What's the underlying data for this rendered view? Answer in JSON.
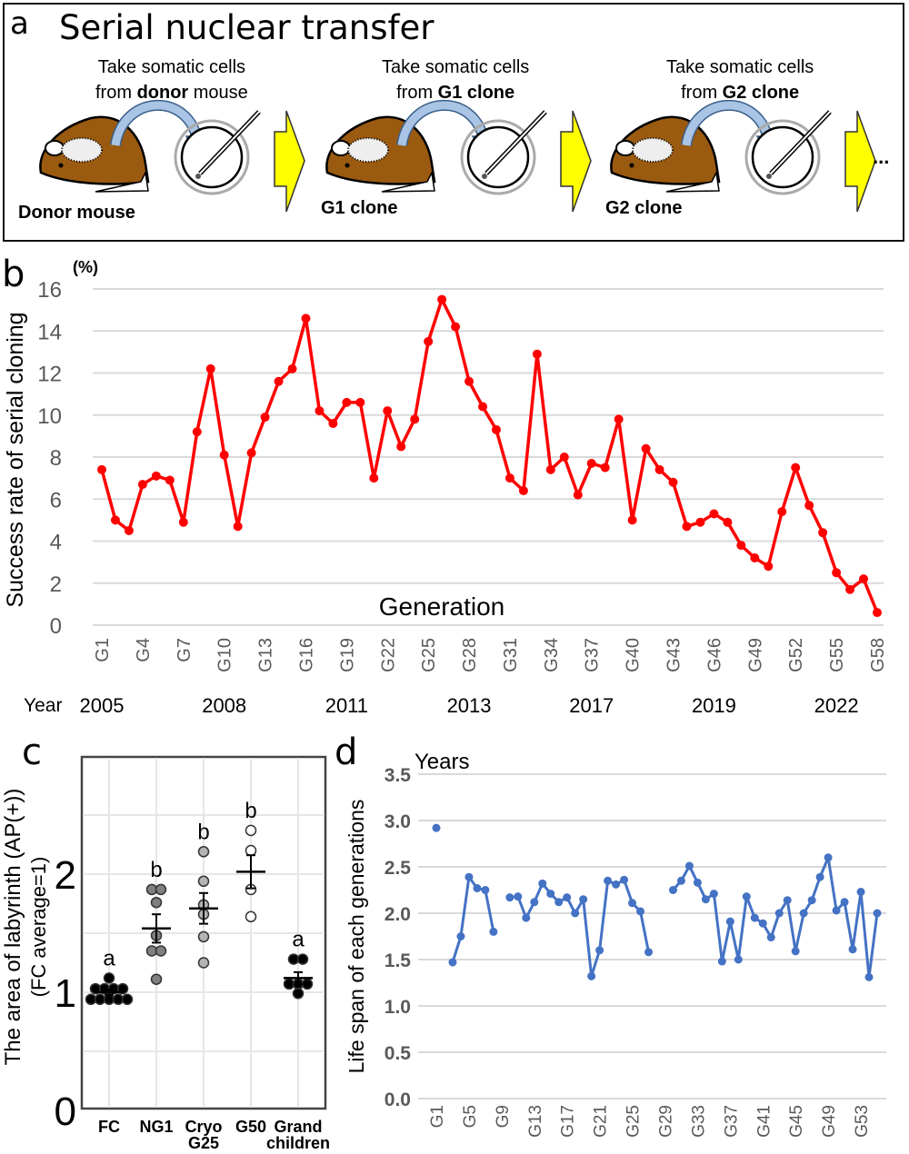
{
  "panel_a": {
    "letter": "a",
    "title": "Serial nuclear transfer",
    "stages": [
      {
        "caption_line1": "Take somatic cells",
        "caption_pre": "from ",
        "caption_bold": "donor",
        "caption_post": " mouse",
        "label": "Donor mouse"
      },
      {
        "caption_line1": "Take somatic cells",
        "caption_pre": "from ",
        "caption_bold": "G1 clone",
        "caption_post": "",
        "label": "G1 clone"
      },
      {
        "caption_line1": "Take somatic cells",
        "caption_pre": "from ",
        "caption_bold": "G2 clone",
        "caption_post": "",
        "label": "G2 clone"
      }
    ],
    "ellipsis": "...",
    "colors": {
      "mouse": "#9a5a10",
      "arrow": "#ffff00",
      "curved_arrow": "#a9c4e4"
    }
  },
  "chart_data": [
    {
      "panel": "b",
      "type": "line",
      "ylabel": "Success rate of serial cloning",
      "yunit": "(%)",
      "xlabel": "Generation",
      "ylim": [
        0,
        16
      ],
      "yticks": [
        0,
        2,
        4,
        6,
        8,
        10,
        12,
        14,
        16
      ],
      "grid": true,
      "color": "#ff0000",
      "x": [
        "G1",
        "G2",
        "G3",
        "G4",
        "G5",
        "G6",
        "G7",
        "G8",
        "G9",
        "G10",
        "G11",
        "G12",
        "G13",
        "G14",
        "G15",
        "G16",
        "G17",
        "G18",
        "G19",
        "G20",
        "G21",
        "G22",
        "G23",
        "G24",
        "G25",
        "G26",
        "G27",
        "G28",
        "G29",
        "G30",
        "G31",
        "G32",
        "G33",
        "G34",
        "G35",
        "G36",
        "G37",
        "G38",
        "G39",
        "G40",
        "G41",
        "G42",
        "G43",
        "G44",
        "G45",
        "G46",
        "G47",
        "G48",
        "G49",
        "G50",
        "G51",
        "G52",
        "G53",
        "G54",
        "G55",
        "G56",
        "G57",
        "G58"
      ],
      "xtick_labels": [
        "G1",
        "G4",
        "G7",
        "G10",
        "G13",
        "G16",
        "G19",
        "G22",
        "G25",
        "G28",
        "G31",
        "G34",
        "G37",
        "G40",
        "G43",
        "G46",
        "G49",
        "G52",
        "G55",
        "G58"
      ],
      "values": [
        7.4,
        5.0,
        4.5,
        6.7,
        7.1,
        6.9,
        4.9,
        9.2,
        12.2,
        8.1,
        4.7,
        8.2,
        9.9,
        11.6,
        12.2,
        14.6,
        10.2,
        9.6,
        10.6,
        10.6,
        7.0,
        10.2,
        8.5,
        9.8,
        13.5,
        15.5,
        14.2,
        11.6,
        10.4,
        9.3,
        7.0,
        6.4,
        12.9,
        7.4,
        8.0,
        6.2,
        7.7,
        7.5,
        9.8,
        5.0,
        8.4,
        7.4,
        6.8,
        4.7,
        4.9,
        5.3,
        4.9,
        3.8,
        3.2,
        2.8,
        5.4,
        7.5,
        5.7,
        4.4,
        2.5,
        1.7,
        2.2,
        0.6
      ],
      "year_row_label": "Year",
      "years": [
        {
          "label": "2005",
          "at": "G1"
        },
        {
          "label": "2008",
          "at": "G10"
        },
        {
          "label": "2011",
          "at": "G19"
        },
        {
          "label": "2013",
          "at": "G28"
        },
        {
          "label": "2017",
          "at": "G37"
        },
        {
          "label": "2019",
          "at": "G46"
        },
        {
          "label": "2022",
          "at": "G55"
        }
      ]
    },
    {
      "panel": "c",
      "type": "scatter",
      "ylabel": "The area of labyrinth (AP(+))",
      "ylabel2": "(FC average=1)",
      "ylim": [
        0,
        2.9
      ],
      "yticks": [
        0,
        1,
        2
      ],
      "grid": true,
      "categories": [
        {
          "label1": "FC",
          "label2": "",
          "letter": "a",
          "fill": "#000000",
          "values": [
            0.94,
            0.94,
            0.94,
            0.94,
            0.94,
            1.03,
            1.03,
            1.03,
            1.03,
            1.12
          ],
          "mean": 1.0,
          "err": 0.02
        },
        {
          "label1": "NG1",
          "label2": "",
          "letter": "b",
          "fill": "#808080",
          "values": [
            1.87,
            1.87,
            1.76,
            1.48,
            1.35,
            1.35,
            1.11
          ],
          "mean": 1.54,
          "err": 0.12
        },
        {
          "label1": "Cryo",
          "label2": "G25",
          "letter": "b",
          "fill": "#b3b3b3",
          "values": [
            2.19,
            1.94,
            1.74,
            1.66,
            1.47,
            1.25
          ],
          "mean": 1.71,
          "err": 0.13
        },
        {
          "label1": "G50",
          "label2": "",
          "letter": "b",
          "fill": "#ffffff",
          "values": [
            2.37,
            2.2,
            1.87,
            1.64
          ],
          "mean": 2.02,
          "err": 0.14
        },
        {
          "label1": "Grand",
          "label2": "children",
          "letter": "a",
          "fill": "#000000",
          "values": [
            1.28,
            1.28,
            1.07,
            1.07,
            1.07,
            0.99
          ],
          "mean": 1.12,
          "err": 0.05
        }
      ]
    },
    {
      "panel": "d",
      "type": "line",
      "ylabel": "Life span of each generations",
      "yunit": "Years",
      "ylim": [
        0,
        3.5
      ],
      "yticks": [
        "0.0",
        "0.5",
        "1.0",
        "1.5",
        "2.0",
        "2.5",
        "3.0",
        "3.5"
      ],
      "grid": true,
      "color": "#4472c4",
      "xtick_labels": [
        "G1",
        "G5",
        "G9",
        "G13",
        "G17",
        "G21",
        "G25",
        "G29",
        "G33",
        "G37",
        "G41",
        "G45",
        "G49",
        "G53"
      ],
      "values": [
        2.92,
        null,
        1.47,
        1.75,
        2.39,
        2.27,
        2.25,
        1.8,
        null,
        2.17,
        2.18,
        1.95,
        2.12,
        2.32,
        2.21,
        2.12,
        2.17,
        2.0,
        2.15,
        1.32,
        1.6,
        2.35,
        2.31,
        2.36,
        2.11,
        2.02,
        1.58,
        null,
        null,
        2.25,
        2.35,
        2.51,
        2.33,
        2.15,
        2.21,
        1.48,
        1.91,
        1.5,
        2.18,
        1.95,
        1.89,
        1.74,
        2.0,
        2.14,
        1.59,
        2.0,
        2.14,
        2.39,
        2.6,
        2.03,
        2.12,
        1.61,
        2.23,
        1.31,
        2.0
      ]
    }
  ],
  "panel_letters": {
    "b": "b",
    "c": "c",
    "d": "d"
  }
}
